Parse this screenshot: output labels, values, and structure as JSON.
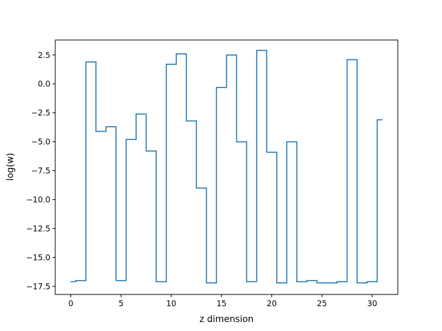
{
  "chart_data": {
    "type": "line",
    "drawstyle": "steps-mid",
    "title": "",
    "xlabel": "z dimension",
    "ylabel": "log(w)",
    "xlim": [
      -1.55,
      32.55
    ],
    "ylim": [
      -18.2,
      3.8
    ],
    "xticks": [
      0,
      5,
      10,
      15,
      20,
      25,
      30
    ],
    "yticks": [
      2.5,
      0.0,
      -2.5,
      -5.0,
      -7.5,
      -10.0,
      -12.5,
      -15.0,
      -17.5
    ],
    "ytick_labels": [
      "2.5",
      "0.0",
      "−2.5",
      "−5.0",
      "−7.5",
      "−10.0",
      "−12.5",
      "−15.0",
      "−17.5"
    ],
    "grid": false,
    "legend": "none",
    "line_color": "#1f77b4",
    "series": [
      {
        "x": [
          0,
          1,
          2,
          3,
          4,
          5,
          6,
          7,
          8,
          9,
          10,
          11,
          12,
          13,
          14,
          15,
          16,
          17,
          18,
          19,
          20,
          21,
          22,
          23,
          24,
          25,
          26,
          27,
          28,
          29,
          30,
          31
        ],
        "values": [
          -17.1,
          -17.0,
          1.9,
          -4.1,
          -3.7,
          -17.0,
          -4.8,
          -2.6,
          -5.8,
          -17.1,
          1.7,
          2.6,
          -3.2,
          -9.0,
          -17.2,
          -0.3,
          2.5,
          -5.0,
          -17.1,
          2.9,
          -5.9,
          -17.2,
          -5.0,
          -17.1,
          -17.0,
          -17.2,
          -17.2,
          -17.1,
          2.1,
          -17.2,
          -17.1,
          -3.1
        ]
      }
    ]
  }
}
